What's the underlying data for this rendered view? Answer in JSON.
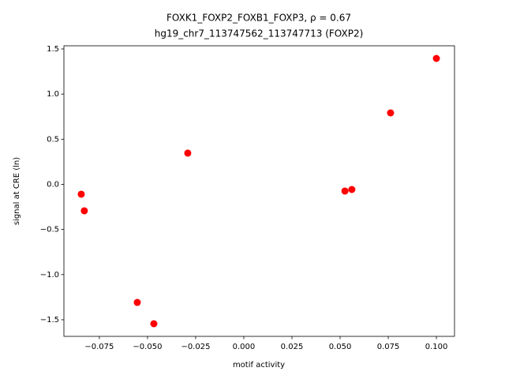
{
  "chart_data": {
    "type": "scatter",
    "title": "FOXK1_FOXP2_FOXB1_FOXP3, ρ = 0.67",
    "subtitle": "hg19_chr7_113747562_113747713 (FOXP2)",
    "x_label": "motif activity",
    "y_label": "signal at CRE (ln)",
    "color": "#ff0000",
    "x": [
      -0.0844,
      -0.0828,
      -0.0553,
      -0.0467,
      -0.0291,
      0.0525,
      0.0561,
      0.0762,
      0.1
    ],
    "values": [
      -0.109,
      -0.293,
      -1.308,
      -1.544,
      0.346,
      -0.074,
      -0.057,
      0.792,
      1.395
    ],
    "xlim": [
      -0.0934,
      0.1094
    ],
    "ylim": [
      -1.684,
      1.535
    ],
    "xticks": [
      {
        "value": -0.075,
        "label": "−0.075"
      },
      {
        "value": -0.05,
        "label": "−0.050"
      },
      {
        "value": -0.025,
        "label": "−0.025"
      },
      {
        "value": 0,
        "label": "0.000"
      },
      0.025,
      {
        "value": 0.05,
        "label": "0.050"
      },
      0.075,
      {
        "value": 0.1,
        "label": "0.100"
      }
    ],
    "yticks": [
      {
        "value": -1.5,
        "label": "−1.5"
      },
      {
        "value": -1,
        "label": "−1.0"
      },
      {
        "value": -0.5,
        "label": "−0.5"
      },
      {
        "value": 0,
        "label": "0.0"
      },
      0.5,
      {
        "value": 1,
        "label": "1.0"
      },
      1.5
    ]
  }
}
